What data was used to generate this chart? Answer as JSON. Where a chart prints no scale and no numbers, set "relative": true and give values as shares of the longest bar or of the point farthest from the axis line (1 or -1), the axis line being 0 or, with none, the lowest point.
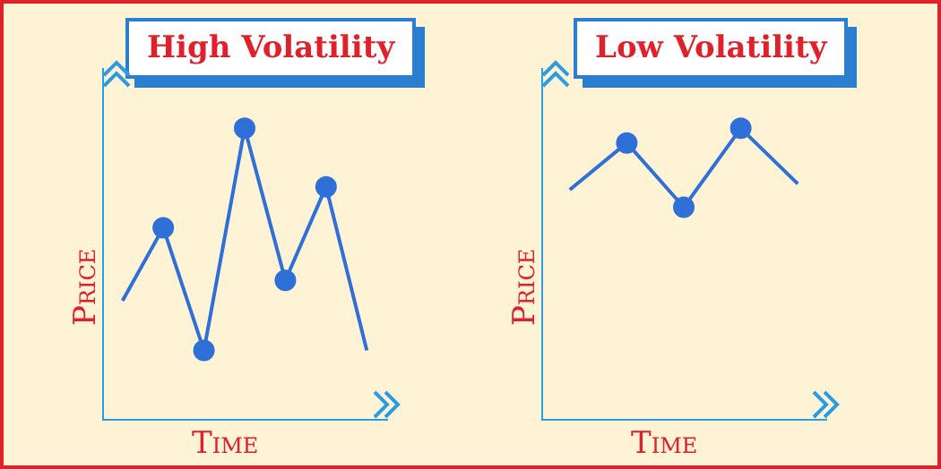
{
  "chart_data": [
    {
      "type": "line",
      "title": "High Volatility",
      "xlabel": "Time",
      "ylabel": "Price",
      "relative": true,
      "tick_labels": false,
      "marker": "circle",
      "categories": [
        null,
        null,
        null,
        null,
        null,
        null,
        null
      ],
      "series": [
        {
          "color": "#2f6fd8",
          "values": [
            0.41,
            0.66,
            0.24,
            1,
            0.48,
            0.8,
            0.24
          ]
        }
      ]
    },
    {
      "type": "line",
      "title": "Low Volatility",
      "xlabel": "Time",
      "ylabel": "Price",
      "relative": true,
      "tick_labels": false,
      "marker": "circle",
      "categories": [
        null,
        null,
        null,
        null,
        null
      ],
      "series": [
        {
          "color": "#2f6fd8",
          "values": [
            0.79,
            0.95,
            0.73,
            1,
            0.81
          ]
        }
      ]
    }
  ]
}
